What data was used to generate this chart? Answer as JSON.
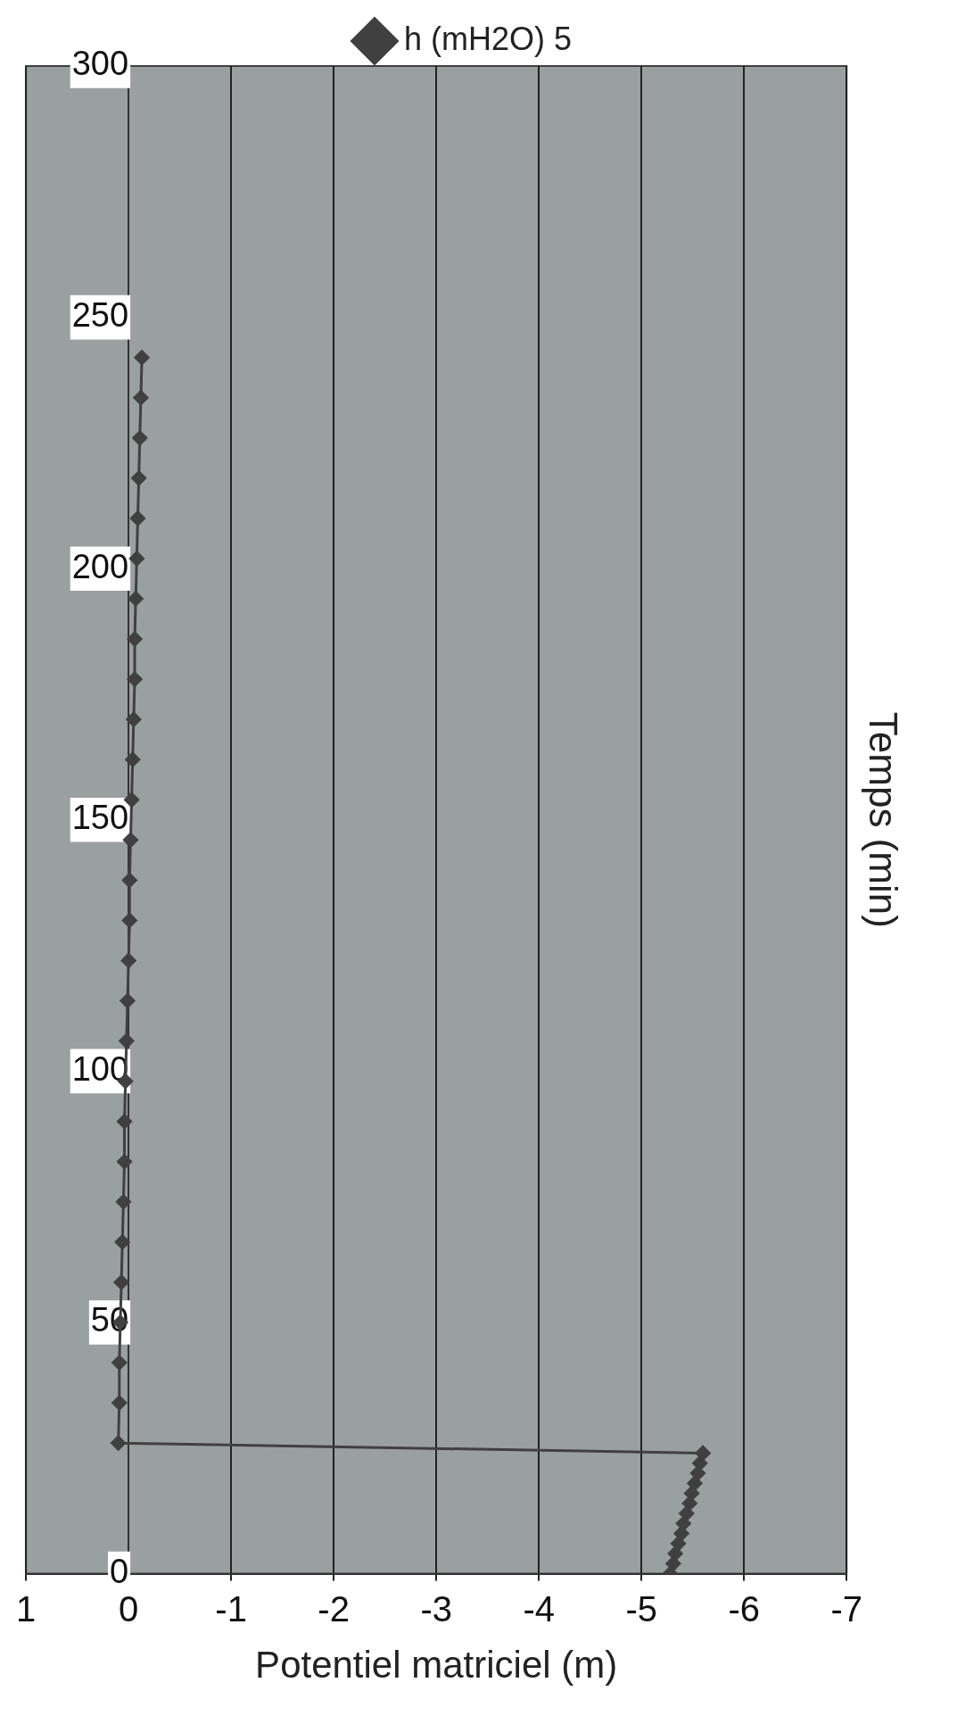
{
  "chart_data": {
    "type": "line",
    "xlabel": "Potentiel matriciel (m)",
    "ylabel": "Temps (min)",
    "series": [
      {
        "name": "h (mH2O) 5",
        "color": "#404040",
        "x": [
          -5.28,
          -5.31,
          -5.33,
          -5.36,
          -5.39,
          -5.41,
          -5.44,
          -5.47,
          -5.49,
          -5.52,
          -5.55,
          -5.57,
          -5.6,
          0.1,
          0.09,
          0.09,
          0.08,
          0.07,
          0.06,
          0.05,
          0.04,
          0.04,
          0.03,
          0.02,
          0.01,
          0,
          -0.01,
          -0.01,
          -0.02,
          -0.03,
          -0.04,
          -0.05,
          -0.06,
          -0.06,
          -0.07,
          -0.08,
          -0.09,
          -0.1,
          -0.11,
          -0.12,
          -0.13
        ],
        "values": [
          0,
          2,
          4,
          6,
          8,
          10,
          12,
          14,
          16,
          18,
          20,
          22,
          24,
          26,
          34,
          42,
          50,
          58,
          66,
          74,
          82,
          90,
          98,
          106,
          114,
          122,
          130,
          138,
          146,
          154,
          162,
          170,
          178,
          186,
          194,
          202,
          210,
          218,
          226,
          234,
          242
        ]
      }
    ],
    "xlim": [
      1,
      -7
    ],
    "xticks": [
      1,
      0,
      -1,
      -2,
      -3,
      -4,
      -5,
      -6,
      -7
    ],
    "ylim": [
      0,
      300
    ],
    "yticks": [
      0,
      50,
      100,
      150,
      200,
      250,
      300
    ],
    "grid": "x",
    "legend": "top",
    "marker": "diamond",
    "line_style": "solid"
  }
}
